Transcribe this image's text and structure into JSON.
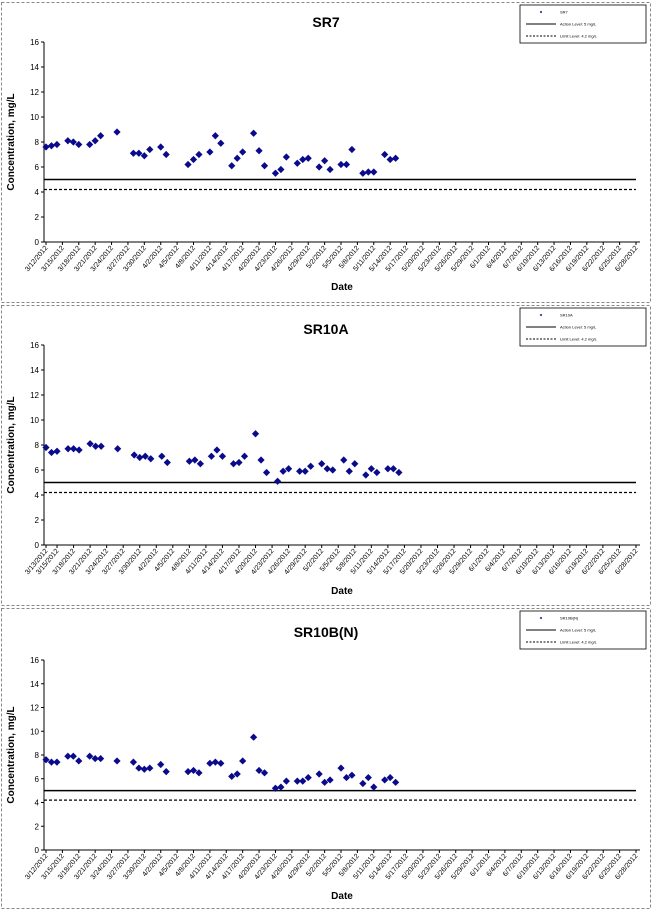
{
  "chart_data": [
    {
      "type": "scatter",
      "title": "SR7",
      "xlabel": "Date",
      "ylabel": "Concentration, mg/L",
      "ylim": [
        0,
        16
      ],
      "yticks": [
        0,
        2,
        4,
        6,
        8,
        10,
        12,
        14,
        16
      ],
      "x_tick_labels": [
        "3/12/2012",
        "3/15/2012",
        "3/18/2012",
        "3/21/2012",
        "3/24/2012",
        "3/27/2012",
        "3/30/2012",
        "4/2/2012",
        "4/5/2012",
        "4/8/2012",
        "4/11/2012",
        "4/14/2012",
        "4/17/2012",
        "4/20/2012",
        "4/23/2012",
        "4/26/2012",
        "4/29/2012",
        "5/2/2012",
        "5/5/2012",
        "5/8/2012",
        "5/11/2012",
        "5/14/2012",
        "5/17/2012",
        "5/20/2012",
        "5/23/2012",
        "5/26/2012",
        "5/29/2012",
        "6/1/2012",
        "6/4/2012",
        "6/7/2012",
        "6/10/2012",
        "6/13/2012",
        "6/16/2012",
        "6/19/2012",
        "6/22/2012",
        "6/25/2012",
        "6/28/2012"
      ],
      "reference_lines": [
        {
          "name": "Action Level: 5 mg/L",
          "value": 5,
          "style": "solid"
        },
        {
          "name": "Limit Level: 4.2 mg/L",
          "value": 4.2,
          "style": "dashed"
        }
      ],
      "series": [
        {
          "name": "SR7",
          "points": [
            [
              "3/12/2012",
              7.6
            ],
            [
              "3/13/2012",
              7.7
            ],
            [
              "3/14/2012",
              7.8
            ],
            [
              "3/16/2012",
              8.1
            ],
            [
              "3/17/2012",
              8.0
            ],
            [
              "3/18/2012",
              7.8
            ],
            [
              "3/20/2012",
              7.8
            ],
            [
              "3/21/2012",
              8.1
            ],
            [
              "3/22/2012",
              8.5
            ],
            [
              "3/25/2012",
              8.8
            ],
            [
              "3/28/2012",
              7.1
            ],
            [
              "3/29/2012",
              7.1
            ],
            [
              "3/30/2012",
              6.9
            ],
            [
              "3/31/2012",
              7.4
            ],
            [
              "4/2/2012",
              7.6
            ],
            [
              "4/3/2012",
              7.0
            ],
            [
              "4/7/2012",
              6.2
            ],
            [
              "4/8/2012",
              6.6
            ],
            [
              "4/9/2012",
              7.0
            ],
            [
              "4/11/2012",
              7.2
            ],
            [
              "4/12/2012",
              8.5
            ],
            [
              "4/13/2012",
              7.9
            ],
            [
              "4/15/2012",
              6.1
            ],
            [
              "4/16/2012",
              6.7
            ],
            [
              "4/17/2012",
              7.2
            ],
            [
              "4/19/2012",
              8.7
            ],
            [
              "4/20/2012",
              7.3
            ],
            [
              "4/21/2012",
              6.1
            ],
            [
              "4/23/2012",
              5.5
            ],
            [
              "4/24/2012",
              5.8
            ],
            [
              "4/25/2012",
              6.8
            ],
            [
              "4/27/2012",
              6.3
            ],
            [
              "4/28/2012",
              6.6
            ],
            [
              "4/29/2012",
              6.7
            ],
            [
              "5/1/2012",
              6.0
            ],
            [
              "5/2/2012",
              6.5
            ],
            [
              "5/3/2012",
              5.8
            ],
            [
              "5/5/2012",
              6.2
            ],
            [
              "5/6/2012",
              6.2
            ],
            [
              "5/7/2012",
              7.4
            ],
            [
              "5/9/2012",
              5.5
            ],
            [
              "5/10/2012",
              5.6
            ],
            [
              "5/11/2012",
              5.6
            ],
            [
              "5/13/2012",
              7.0
            ],
            [
              "5/14/2012",
              6.6
            ],
            [
              "5/15/2012",
              6.7
            ]
          ]
        }
      ],
      "legend": [
        "SR7",
        "Action Level: 5 mg/L",
        "Limit Level: 4.2 mg/L"
      ],
      "legend_position": "top-right",
      "grid": false
    },
    {
      "type": "scatter",
      "title": "SR10A",
      "xlabel": "Date",
      "ylabel": "Concentration, mg/L",
      "ylim": [
        0,
        16
      ],
      "yticks": [
        0,
        2,
        4,
        6,
        8,
        10,
        12,
        14,
        16
      ],
      "x_tick_labels": [
        "3/13/2012",
        "3/15/2012",
        "3/18/2012",
        "3/21/2012",
        "3/24/2012",
        "3/27/2012",
        "3/30/2012",
        "4/2/2012",
        "4/5/2012",
        "4/8/2012",
        "4/11/2012",
        "4/14/2012",
        "4/17/2012",
        "4/20/2012",
        "4/23/2012",
        "4/26/2012",
        "4/29/2012",
        "5/2/2012",
        "5/5/2012",
        "5/8/2012",
        "5/11/2012",
        "5/14/2012",
        "5/17/2012",
        "5/20/2012",
        "5/23/2012",
        "5/26/2012",
        "5/29/2012",
        "6/1/2012",
        "6/4/2012",
        "6/7/2012",
        "6/10/2012",
        "6/13/2012",
        "6/16/2012",
        "6/19/2012",
        "6/22/2012",
        "6/25/2012",
        "6/28/2012"
      ],
      "reference_lines": [
        {
          "name": "Action Level: 5 mg/L",
          "value": 5,
          "style": "solid"
        },
        {
          "name": "Limit Level: 4.2 mg/L",
          "value": 4.2,
          "style": "dashed"
        }
      ],
      "series": [
        {
          "name": "SR10A",
          "points": [
            [
              "3/13/2012",
              7.8
            ],
            [
              "3/14/2012",
              7.4
            ],
            [
              "3/15/2012",
              7.5
            ],
            [
              "3/17/2012",
              7.7
            ],
            [
              "3/18/2012",
              7.7
            ],
            [
              "3/19/2012",
              7.6
            ],
            [
              "3/21/2012",
              8.1
            ],
            [
              "3/22/2012",
              7.9
            ],
            [
              "3/23/2012",
              7.9
            ],
            [
              "3/26/2012",
              7.7
            ],
            [
              "3/29/2012",
              7.2
            ],
            [
              "3/30/2012",
              7.0
            ],
            [
              "3/31/2012",
              7.1
            ],
            [
              "4/1/2012",
              6.9
            ],
            [
              "4/3/2012",
              7.1
            ],
            [
              "4/4/2012",
              6.6
            ],
            [
              "4/8/2012",
              6.7
            ],
            [
              "4/9/2012",
              6.8
            ],
            [
              "4/10/2012",
              6.5
            ],
            [
              "4/12/2012",
              7.1
            ],
            [
              "4/13/2012",
              7.6
            ],
            [
              "4/14/2012",
              7.1
            ],
            [
              "4/16/2012",
              6.5
            ],
            [
              "4/17/2012",
              6.6
            ],
            [
              "4/18/2012",
              7.1
            ],
            [
              "4/20/2012",
              8.9
            ],
            [
              "4/21/2012",
              6.8
            ],
            [
              "4/22/2012",
              5.8
            ],
            [
              "4/24/2012",
              5.1
            ],
            [
              "4/25/2012",
              5.9
            ],
            [
              "4/26/2012",
              6.1
            ],
            [
              "4/28/2012",
              5.9
            ],
            [
              "4/29/2012",
              5.9
            ],
            [
              "4/30/2012",
              6.3
            ],
            [
              "5/2/2012",
              6.5
            ],
            [
              "5/3/2012",
              6.1
            ],
            [
              "5/4/2012",
              6.0
            ],
            [
              "5/6/2012",
              6.8
            ],
            [
              "5/7/2012",
              5.9
            ],
            [
              "5/8/2012",
              6.5
            ],
            [
              "5/10/2012",
              5.6
            ],
            [
              "5/11/2012",
              6.1
            ],
            [
              "5/12/2012",
              5.8
            ],
            [
              "5/14/2012",
              6.1
            ],
            [
              "5/15/2012",
              6.1
            ],
            [
              "5/16/2012",
              5.8
            ]
          ]
        }
      ],
      "legend": [
        "SR10A",
        "Action Level: 5 mg/L",
        "Limit Level: 4.2 mg/L"
      ],
      "legend_position": "top-right",
      "grid": false
    },
    {
      "type": "scatter",
      "title": "SR10B(N)",
      "xlabel": "Date",
      "ylabel": "Concentration, mg/L",
      "ylim": [
        0,
        16
      ],
      "yticks": [
        0,
        2,
        4,
        6,
        8,
        10,
        12,
        14,
        16
      ],
      "x_tick_labels": [
        "3/12/2012",
        "3/15/2012",
        "3/18/2012",
        "3/21/2012",
        "3/24/2012",
        "3/27/2012",
        "3/30/2012",
        "4/2/2012",
        "4/5/2012",
        "4/8/2012",
        "4/11/2012",
        "4/14/2012",
        "4/17/2012",
        "4/20/2012",
        "4/23/2012",
        "4/26/2012",
        "4/29/2012",
        "5/2/2012",
        "5/5/2012",
        "5/8/2012",
        "5/11/2012",
        "5/14/2012",
        "5/17/2012",
        "5/20/2012",
        "5/23/2012",
        "5/26/2012",
        "5/29/2012",
        "6/1/2012",
        "6/4/2012",
        "6/7/2012",
        "6/10/2012",
        "6/13/2012",
        "6/16/2012",
        "6/19/2012",
        "6/22/2012",
        "6/25/2012",
        "6/28/2012"
      ],
      "reference_lines": [
        {
          "name": "Action Level: 5 mg/L",
          "value": 5,
          "style": "solid"
        },
        {
          "name": "Limit Level: 4.2 mg/L",
          "value": 4.2,
          "style": "dashed"
        }
      ],
      "series": [
        {
          "name": "SR10B(N)",
          "points": [
            [
              "3/12/2012",
              7.6
            ],
            [
              "3/13/2012",
              7.4
            ],
            [
              "3/14/2012",
              7.4
            ],
            [
              "3/16/2012",
              7.9
            ],
            [
              "3/17/2012",
              7.9
            ],
            [
              "3/18/2012",
              7.5
            ],
            [
              "3/20/2012",
              7.9
            ],
            [
              "3/21/2012",
              7.7
            ],
            [
              "3/22/2012",
              7.7
            ],
            [
              "3/25/2012",
              7.5
            ],
            [
              "3/28/2012",
              7.4
            ],
            [
              "3/29/2012",
              6.9
            ],
            [
              "3/30/2012",
              6.8
            ],
            [
              "3/31/2012",
              6.9
            ],
            [
              "4/2/2012",
              7.2
            ],
            [
              "4/3/2012",
              6.6
            ],
            [
              "4/7/2012",
              6.6
            ],
            [
              "4/8/2012",
              6.7
            ],
            [
              "4/9/2012",
              6.5
            ],
            [
              "4/11/2012",
              7.3
            ],
            [
              "4/12/2012",
              7.4
            ],
            [
              "4/13/2012",
              7.3
            ],
            [
              "4/15/2012",
              6.2
            ],
            [
              "4/16/2012",
              6.4
            ],
            [
              "4/17/2012",
              7.5
            ],
            [
              "4/19/2012",
              9.5
            ],
            [
              "4/20/2012",
              6.7
            ],
            [
              "4/21/2012",
              6.5
            ],
            [
              "4/23/2012",
              5.2
            ],
            [
              "4/24/2012",
              5.3
            ],
            [
              "4/25/2012",
              5.8
            ],
            [
              "4/27/2012",
              5.8
            ],
            [
              "4/28/2012",
              5.8
            ],
            [
              "4/29/2012",
              6.1
            ],
            [
              "5/1/2012",
              6.4
            ],
            [
              "5/2/2012",
              5.7
            ],
            [
              "5/3/2012",
              5.9
            ],
            [
              "5/5/2012",
              6.9
            ],
            [
              "5/6/2012",
              6.1
            ],
            [
              "5/7/2012",
              6.3
            ],
            [
              "5/9/2012",
              5.6
            ],
            [
              "5/10/2012",
              6.1
            ],
            [
              "5/11/2012",
              5.3
            ],
            [
              "5/13/2012",
              5.9
            ],
            [
              "5/14/2012",
              6.1
            ],
            [
              "5/15/2012",
              5.7
            ]
          ]
        }
      ],
      "legend": [
        "SR10B(N)",
        "Action Level: 5 mg/L",
        "Limit Level: 4.2 mg/L"
      ],
      "legend_position": "top-right",
      "grid": false
    }
  ]
}
